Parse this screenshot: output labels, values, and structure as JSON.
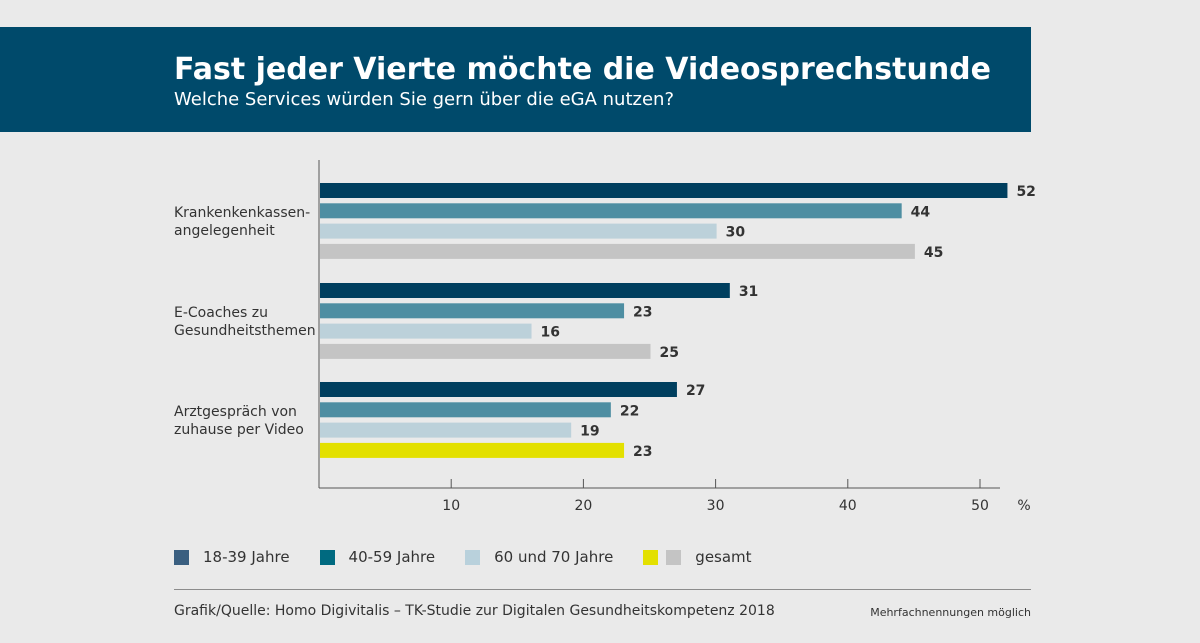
{
  "header": {
    "title": "Fast jeder Vierte möchte die Videosprechstunde",
    "subtitle": "Welche Services würden Sie gern über die eGA nutzen?"
  },
  "colors": {
    "banner": "#004a6b",
    "series_18_39": "#003f5f",
    "series_40_59": "#4e8ea2",
    "series_60_70": "#bcd1da",
    "series_gesamt": "#c4c4c4",
    "highlight": "#e3e000"
  },
  "chart_data": {
    "type": "bar",
    "orientation": "horizontal",
    "categories": [
      [
        "Krankenkenkassen-",
        "angelegenheit"
      ],
      [
        "E-Coaches zu",
        "Gesundheitsthemen"
      ],
      [
        "Arztgespräch von",
        "zuhause per Video"
      ]
    ],
    "series": [
      {
        "name": "18-39 Jahre",
        "values": [
          52,
          31,
          27
        ]
      },
      {
        "name": "40-59 Jahre",
        "values": [
          44,
          23,
          22
        ]
      },
      {
        "name": "60 und 70 Jahre",
        "values": [
          30,
          16,
          19
        ]
      },
      {
        "name": "gesamt",
        "values": [
          45,
          25,
          23
        ]
      }
    ],
    "highlighted": {
      "series": "gesamt",
      "category_index": 2
    },
    "xlim": [
      0,
      52
    ],
    "xticks": [
      10,
      20,
      30,
      40,
      50
    ],
    "xunit": "%",
    "grid": false
  },
  "legend": {
    "items": [
      {
        "label": "18-39 Jahre",
        "color": "#3a5f80"
      },
      {
        "label": "40-59 Jahre",
        "color": "#006a80"
      },
      {
        "label": "60 und 70 Jahre",
        "color": "#b9d1dc"
      },
      {
        "label": "gesamt",
        "color": "#e3e000",
        "color2": "#c4c4c4"
      }
    ]
  },
  "footer": {
    "source": "Grafik/Quelle: Homo Digivitalis – TK-Studie zur Digitalen Gesundheitskompetenz 2018",
    "note": "Mehrfachnennungen möglich"
  }
}
